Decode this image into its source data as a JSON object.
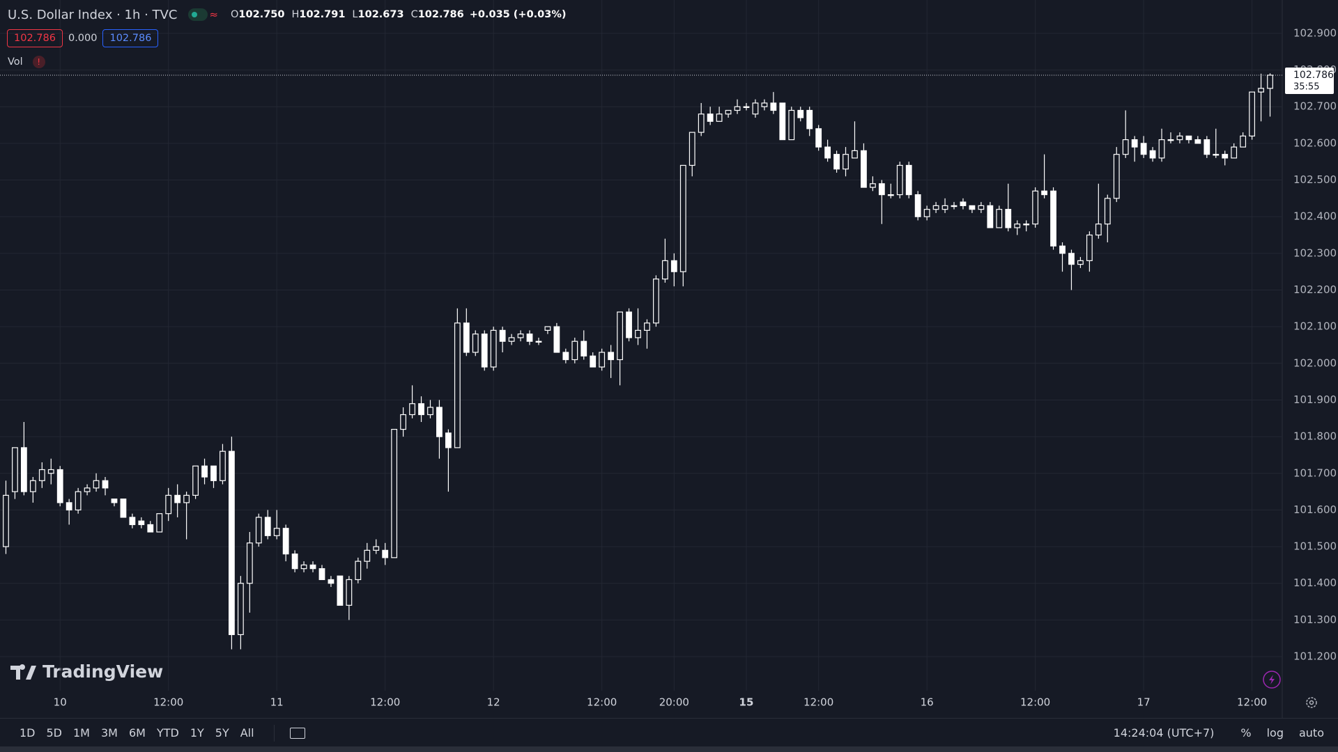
{
  "header": {
    "title": "U.S. Dollar Index · 1h · TVC",
    "ohlc": [
      {
        "key": "O",
        "value": "102.750"
      },
      {
        "key": "H",
        "value": "102.791"
      },
      {
        "key": "L",
        "value": "102.673"
      },
      {
        "key": "C",
        "value": "102.786"
      }
    ],
    "change": "+0.035 (+0.03%)",
    "sell": "102.786",
    "spread": "0.000",
    "buy": "102.786",
    "indicator": "Vol"
  },
  "logo": "TradingView",
  "toolbar": {
    "ranges": [
      "1D",
      "5D",
      "1M",
      "3M",
      "6M",
      "YTD",
      "1Y",
      "5Y",
      "All"
    ],
    "time": "14:24:04 (UTC+7)",
    "options": [
      "%",
      "log",
      "auto"
    ]
  },
  "chart_data": {
    "type": "candlestick",
    "categories": [
      null,
      null,
      null,
      null,
      null,
      null,
      "10",
      null,
      null,
      null,
      null,
      null,
      null,
      null,
      null,
      null,
      null,
      null,
      "12:00",
      null,
      null,
      null,
      null,
      null,
      null,
      null,
      null,
      null,
      null,
      null,
      "11",
      null,
      null,
      null,
      null,
      null,
      null,
      null,
      null,
      null,
      null,
      null,
      "12:00",
      null,
      null,
      null,
      null,
      null,
      null,
      null,
      null,
      null,
      null,
      null,
      "12",
      null,
      null,
      null,
      null,
      null,
      null,
      null,
      null,
      null,
      null,
      null,
      "12:00",
      null,
      null,
      null,
      null,
      null,
      null,
      null,
      "20:00",
      null,
      null,
      null,
      null,
      null,
      null,
      null,
      "15",
      null,
      null,
      null,
      null,
      null,
      null,
      null,
      "12:00",
      null,
      null,
      null,
      null,
      null,
      null,
      null,
      null,
      null,
      null,
      null,
      "16",
      null,
      null,
      null,
      null,
      null,
      null,
      null,
      null,
      null,
      null,
      null,
      "12:00",
      null,
      null,
      null,
      null,
      null,
      null,
      null,
      null,
      null,
      null,
      null,
      "17",
      null,
      null,
      null,
      null,
      null,
      null,
      null,
      null,
      null,
      null,
      null,
      "12:00",
      null,
      null
    ],
    "open": [
      101.5,
      101.65,
      101.77,
      101.65,
      101.68,
      101.7,
      101.71,
      101.62,
      101.6,
      101.65,
      101.66,
      101.68,
      101.63,
      101.63,
      101.58,
      101.57,
      101.56,
      101.54,
      101.59,
      101.64,
      101.62,
      101.64,
      101.72,
      101.72,
      101.68,
      101.76,
      101.26,
      101.4,
      101.51,
      101.58,
      101.53,
      101.55,
      101.48,
      101.44,
      101.45,
      101.44,
      101.41,
      101.42,
      101.34,
      101.41,
      101.46,
      101.49,
      101.49,
      101.47,
      101.82,
      101.86,
      101.89,
      101.86,
      101.88,
      101.81,
      101.77,
      102.11,
      102.03,
      102.08,
      101.99,
      102.09,
      102.06,
      102.07,
      102.08,
      102.06,
      102.09,
      102.1,
      102.03,
      102.01,
      102.06,
      102.02,
      101.99,
      102.03,
      102.01,
      102.14,
      102.07,
      102.09,
      102.11,
      102.23,
      102.28,
      102.25,
      102.54,
      102.63,
      102.68,
      102.66,
      102.68,
      102.69,
      102.7,
      102.68,
      102.7,
      102.71,
      102.71,
      102.61,
      102.69,
      102.69,
      102.64,
      102.59,
      102.57,
      102.53,
      102.56,
      102.58,
      102.48,
      102.49,
      102.46,
      102.46,
      102.54,
      102.46,
      102.4,
      102.42,
      102.42,
      102.43,
      102.44,
      102.43,
      102.42,
      102.43,
      102.37,
      102.42,
      102.37,
      102.38,
      102.38,
      102.47,
      102.47,
      102.32,
      102.3,
      102.27,
      102.28,
      102.35,
      102.38,
      102.45,
      102.57,
      102.61,
      102.6,
      102.58,
      102.56,
      102.61,
      102.61,
      102.62,
      102.61,
      102.61,
      102.57,
      102.57,
      102.56,
      102.59,
      102.62,
      102.74,
      102.75
    ],
    "high": [
      101.68,
      101.77,
      101.84,
      101.69,
      101.73,
      101.74,
      101.72,
      101.63,
      101.66,
      101.67,
      101.7,
      101.69,
      101.63,
      101.63,
      101.59,
      101.58,
      101.57,
      101.59,
      101.66,
      101.67,
      101.65,
      101.72,
      101.74,
      101.72,
      101.78,
      101.8,
      101.42,
      101.54,
      101.59,
      101.6,
      101.6,
      101.56,
      101.49,
      101.46,
      101.46,
      101.45,
      101.42,
      101.42,
      101.42,
      101.47,
      101.51,
      101.52,
      101.51,
      101.82,
      101.88,
      101.94,
      101.91,
      101.9,
      101.9,
      101.82,
      102.15,
      102.15,
      102.09,
      102.09,
      102.1,
      102.1,
      102.08,
      102.09,
      102.09,
      102.07,
      102.1,
      102.11,
      102.04,
      102.07,
      102.09,
      102.03,
      102.04,
      102.05,
      102.14,
      102.15,
      102.15,
      102.12,
      102.24,
      102.34,
      102.3,
      102.54,
      102.63,
      102.71,
      102.7,
      102.7,
      102.69,
      102.72,
      102.71,
      102.72,
      102.72,
      102.74,
      102.71,
      102.7,
      102.7,
      102.7,
      102.65,
      102.61,
      102.58,
      102.59,
      102.66,
      102.6,
      102.51,
      102.5,
      102.49,
      102.55,
      102.55,
      102.47,
      102.43,
      102.44,
      102.45,
      102.44,
      102.45,
      102.43,
      102.44,
      102.44,
      102.43,
      102.49,
      102.39,
      102.39,
      102.48,
      102.57,
      102.48,
      102.33,
      102.31,
      102.29,
      102.36,
      102.49,
      102.46,
      102.59,
      102.69,
      102.62,
      102.62,
      102.59,
      102.64,
      102.63,
      102.63,
      102.62,
      102.62,
      102.62,
      102.64,
      102.58,
      102.6,
      102.63,
      102.74,
      102.79,
      102.791
    ],
    "low": [
      101.48,
      101.63,
      101.64,
      101.62,
      101.66,
      101.67,
      101.61,
      101.56,
      101.59,
      101.64,
      101.65,
      101.64,
      101.61,
      101.58,
      101.55,
      101.55,
      101.54,
      101.54,
      101.57,
      101.58,
      101.52,
      101.63,
      101.67,
      101.66,
      101.67,
      101.22,
      101.22,
      101.32,
      101.5,
      101.52,
      101.52,
      101.46,
      101.43,
      101.43,
      101.43,
      101.41,
      101.39,
      101.34,
      101.3,
      101.4,
      101.44,
      101.48,
      101.45,
      101.47,
      101.8,
      101.85,
      101.84,
      101.85,
      101.74,
      101.65,
      101.77,
      102.02,
      102.02,
      101.98,
      101.98,
      102.03,
      102.05,
      102.06,
      102.05,
      102.05,
      102.08,
      102.03,
      102.0,
      102.0,
      102.01,
      101.99,
      101.98,
      101.96,
      101.94,
      102.06,
      102.05,
      102.04,
      102.1,
      102.22,
      102.21,
      102.21,
      102.51,
      102.62,
      102.65,
      102.66,
      102.67,
      102.68,
      102.69,
      102.67,
      102.69,
      102.68,
      102.61,
      102.61,
      102.66,
      102.62,
      102.58,
      102.55,
      102.52,
      102.51,
      102.56,
      102.48,
      102.47,
      102.38,
      102.45,
      102.45,
      102.45,
      102.39,
      102.39,
      102.41,
      102.41,
      102.42,
      102.42,
      102.41,
      102.41,
      102.37,
      102.37,
      102.36,
      102.35,
      102.36,
      102.37,
      102.45,
      102.31,
      102.25,
      102.2,
      102.26,
      102.25,
      102.34,
      102.33,
      102.44,
      102.56,
      102.55,
      102.56,
      102.55,
      102.55,
      102.6,
      102.6,
      102.6,
      102.6,
      102.56,
      102.56,
      102.54,
      102.56,
      102.59,
      102.61,
      102.66,
      102.673
    ],
    "close": [
      101.64,
      101.77,
      101.65,
      101.68,
      101.71,
      101.71,
      101.62,
      101.6,
      101.65,
      101.66,
      101.68,
      101.66,
      101.62,
      101.58,
      101.56,
      101.56,
      101.54,
      101.59,
      101.64,
      101.62,
      101.64,
      101.72,
      101.69,
      101.68,
      101.76,
      101.26,
      101.4,
      101.51,
      101.58,
      101.53,
      101.55,
      101.48,
      101.44,
      101.45,
      101.44,
      101.41,
      101.4,
      101.34,
      101.41,
      101.46,
      101.49,
      101.5,
      101.47,
      101.82,
      101.86,
      101.89,
      101.86,
      101.88,
      101.8,
      101.77,
      102.11,
      102.03,
      102.08,
      101.99,
      102.09,
      102.06,
      102.07,
      102.08,
      102.06,
      102.06,
      102.1,
      102.03,
      102.01,
      102.06,
      102.02,
      101.99,
      102.03,
      102.01,
      102.14,
      102.07,
      102.09,
      102.11,
      102.23,
      102.28,
      102.25,
      102.54,
      102.63,
      102.68,
      102.66,
      102.68,
      102.69,
      102.7,
      102.7,
      102.71,
      102.71,
      102.69,
      102.61,
      102.69,
      102.67,
      102.64,
      102.59,
      102.56,
      102.53,
      102.57,
      102.58,
      102.48,
      102.49,
      102.46,
      102.46,
      102.54,
      102.46,
      102.4,
      102.42,
      102.43,
      102.43,
      102.43,
      102.43,
      102.42,
      102.43,
      102.37,
      102.42,
      102.37,
      102.38,
      102.38,
      102.47,
      102.46,
      102.32,
      102.3,
      102.27,
      102.28,
      102.35,
      102.38,
      102.45,
      102.57,
      102.61,
      102.59,
      102.57,
      102.56,
      102.61,
      102.61,
      102.62,
      102.61,
      102.6,
      102.57,
      102.57,
      102.56,
      102.59,
      102.62,
      102.74,
      102.75,
      102.786
    ],
    "ylim": [
      101.107,
      102.991
    ],
    "yticks": [
      {
        "value": 102.9,
        "label": "102.900"
      },
      {
        "value": 102.8,
        "label": "102.800"
      },
      {
        "value": 102.7,
        "label": "102.700"
      },
      {
        "value": 102.6,
        "label": "102.600"
      },
      {
        "value": 102.5,
        "label": "102.500"
      },
      {
        "value": 102.4,
        "label": "102.400"
      },
      {
        "value": 102.3,
        "label": "102.300"
      },
      {
        "value": 102.2,
        "label": "102.200"
      },
      {
        "value": 102.1,
        "label": "102.100"
      },
      {
        "value": 102.0,
        "label": "102.000"
      },
      {
        "value": 101.9,
        "label": "101.900"
      },
      {
        "value": 101.8,
        "label": "101.800"
      },
      {
        "value": 101.7,
        "label": "101.700"
      },
      {
        "value": 101.6,
        "label": "101.600"
      },
      {
        "value": 101.5,
        "label": "101.500"
      },
      {
        "value": 101.4,
        "label": "101.400"
      },
      {
        "value": 101.3,
        "label": "101.300"
      },
      {
        "value": 101.2,
        "label": "101.200"
      }
    ],
    "last_price": 102.786,
    "countdown": "35:55",
    "grid": true,
    "up_color": "#ffffff",
    "down_color": "#ffffff"
  }
}
